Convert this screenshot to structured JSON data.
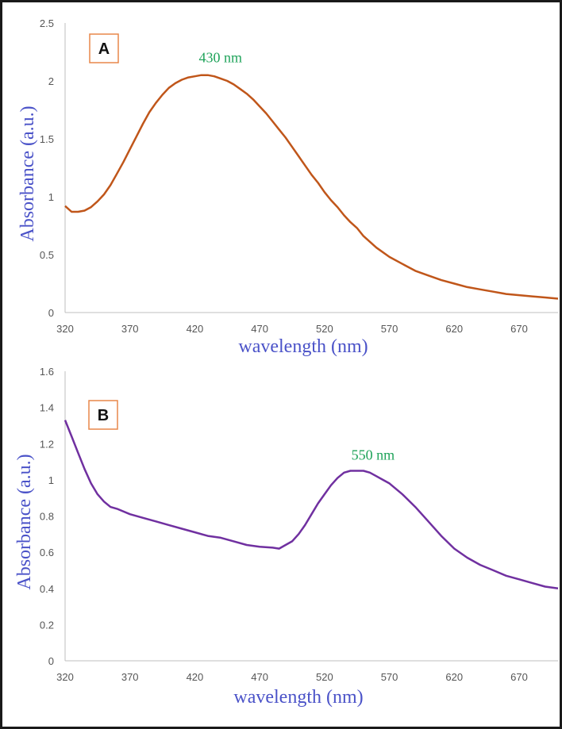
{
  "colors": {
    "axis_title": "#4a52c8",
    "peak_label": "#1fa35a",
    "panel_box": "#e8874a",
    "axis_line": "#bfbfbf"
  },
  "chart_data": [
    {
      "type": "line",
      "panel_label": "A",
      "title": "",
      "xlabel": "wavelength (nm)",
      "ylabel": "Absorbance (a.u.)",
      "xlim": [
        320,
        700
      ],
      "ylim": [
        0,
        2.5
      ],
      "xticks": [
        "320",
        "370",
        "420",
        "470",
        "520",
        "570",
        "620",
        "670"
      ],
      "yticks": [
        "0",
        "0.5",
        "1",
        "1.5",
        "2",
        "2.5"
      ],
      "annotation": {
        "text": "430 nm",
        "x": 430,
        "y": 2.05
      },
      "series": [
        {
          "color": "#c0561a",
          "x": [
            320,
            325,
            330,
            335,
            340,
            345,
            350,
            355,
            360,
            365,
            370,
            375,
            380,
            385,
            390,
            395,
            400,
            405,
            410,
            415,
            420,
            425,
            430,
            435,
            440,
            445,
            450,
            455,
            460,
            465,
            470,
            475,
            480,
            485,
            490,
            495,
            500,
            505,
            510,
            515,
            520,
            525,
            530,
            535,
            540,
            545,
            550,
            560,
            570,
            580,
            590,
            600,
            610,
            620,
            630,
            640,
            650,
            660,
            670,
            680,
            690,
            700
          ],
          "values": [
            0.92,
            0.87,
            0.87,
            0.88,
            0.91,
            0.96,
            1.02,
            1.1,
            1.2,
            1.3,
            1.41,
            1.52,
            1.63,
            1.73,
            1.81,
            1.88,
            1.94,
            1.98,
            2.01,
            2.03,
            2.04,
            2.05,
            2.05,
            2.04,
            2.02,
            2.0,
            1.97,
            1.93,
            1.89,
            1.84,
            1.78,
            1.72,
            1.65,
            1.58,
            1.51,
            1.43,
            1.35,
            1.27,
            1.19,
            1.12,
            1.04,
            0.97,
            0.91,
            0.84,
            0.78,
            0.73,
            0.66,
            0.56,
            0.48,
            0.42,
            0.36,
            0.32,
            0.28,
            0.25,
            0.22,
            0.2,
            0.18,
            0.16,
            0.15,
            0.14,
            0.13,
            0.12
          ]
        }
      ]
    },
    {
      "type": "line",
      "panel_label": "B",
      "title": "",
      "xlabel": "wavelength (nm)",
      "ylabel": "Absorbance (a.u.)",
      "xlim": [
        320,
        700
      ],
      "ylim": [
        0,
        1.6
      ],
      "xticks": [
        "320",
        "370",
        "420",
        "470",
        "520",
        "570",
        "620",
        "670"
      ],
      "yticks": [
        "0",
        "0.2",
        "0.4",
        "0.6",
        "0.8",
        "1",
        "1.2",
        "1.4",
        "1.6"
      ],
      "annotation": {
        "text": "550 nm",
        "x": 550,
        "y": 1.05
      },
      "series": [
        {
          "color": "#7030a0",
          "x": [
            320,
            325,
            330,
            335,
            340,
            345,
            350,
            355,
            360,
            370,
            380,
            390,
            400,
            410,
            420,
            430,
            440,
            450,
            460,
            470,
            480,
            485,
            490,
            495,
            500,
            505,
            510,
            515,
            520,
            525,
            530,
            535,
            540,
            545,
            550,
            555,
            560,
            565,
            570,
            580,
            590,
            600,
            610,
            620,
            630,
            640,
            650,
            660,
            670,
            680,
            690,
            700
          ],
          "values": [
            1.33,
            1.24,
            1.15,
            1.06,
            0.98,
            0.92,
            0.88,
            0.85,
            0.84,
            0.81,
            0.79,
            0.77,
            0.75,
            0.73,
            0.71,
            0.69,
            0.68,
            0.66,
            0.64,
            0.63,
            0.625,
            0.62,
            0.64,
            0.66,
            0.7,
            0.75,
            0.81,
            0.87,
            0.92,
            0.97,
            1.01,
            1.04,
            1.05,
            1.05,
            1.05,
            1.04,
            1.02,
            1.0,
            0.98,
            0.92,
            0.85,
            0.77,
            0.69,
            0.62,
            0.57,
            0.53,
            0.5,
            0.47,
            0.45,
            0.43,
            0.41,
            0.4
          ]
        }
      ]
    }
  ]
}
